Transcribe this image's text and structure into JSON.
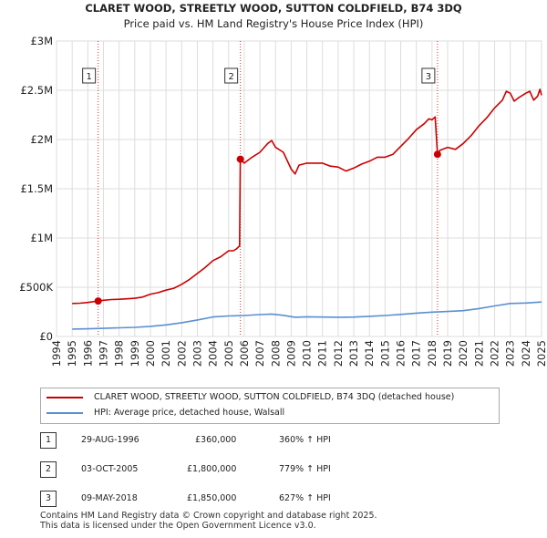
{
  "chart_data": {
    "type": "line",
    "title": "CLARET WOOD, STREETLY WOOD, SUTTON COLDFIELD, B74 3DQ",
    "subtitle": "Price paid vs. HM Land Registry's House Price Index (HPI)",
    "x_ticks": [
      "1994",
      "1995",
      "1996",
      "1997",
      "1998",
      "1999",
      "2000",
      "2001",
      "2002",
      "2003",
      "2004",
      "2005",
      "2006",
      "2007",
      "2008",
      "2009",
      "2010",
      "2011",
      "2012",
      "2013",
      "2014",
      "2015",
      "2016",
      "2017",
      "2018",
      "2019",
      "2020",
      "2021",
      "2022",
      "2023",
      "2024",
      "2025"
    ],
    "y_ticks": [
      {
        "value": 0,
        "label": "£0"
      },
      {
        "value": 500000,
        "label": "£500K"
      },
      {
        "value": 1000000,
        "label": "£1M"
      },
      {
        "value": 1500000,
        "label": "£1.5M"
      },
      {
        "value": 2000000,
        "label": "£2M"
      },
      {
        "value": 2500000,
        "label": "£2.5M"
      },
      {
        "value": 3000000,
        "label": "£3M"
      }
    ],
    "xlim": [
      1994,
      2025
    ],
    "ylim": [
      0,
      3000000
    ],
    "series": [
      {
        "name": "CLARET WOOD, STREETLY WOOD, SUTTON COLDFIELD, B74 3DQ (detached house)",
        "color": "#cc0000",
        "points": [
          [
            1995.0,
            335000
          ],
          [
            1995.5,
            338000
          ],
          [
            1996.0,
            345000
          ],
          [
            1996.66,
            360000
          ],
          [
            1997.0,
            368000
          ],
          [
            1997.5,
            375000
          ],
          [
            1998.0,
            378000
          ],
          [
            1998.5,
            382000
          ],
          [
            1999.0,
            388000
          ],
          [
            1999.5,
            400000
          ],
          [
            2000.0,
            430000
          ],
          [
            2000.5,
            445000
          ],
          [
            2001.0,
            470000
          ],
          [
            2001.5,
            490000
          ],
          [
            2002.0,
            530000
          ],
          [
            2002.5,
            580000
          ],
          [
            2003.0,
            640000
          ],
          [
            2003.5,
            700000
          ],
          [
            2004.0,
            770000
          ],
          [
            2004.5,
            810000
          ],
          [
            2005.0,
            870000
          ],
          [
            2005.3,
            870000
          ],
          [
            2005.5,
            890000
          ],
          [
            2005.7,
            920000
          ],
          [
            2005.75,
            1800000
          ],
          [
            2006.0,
            1760000
          ],
          [
            2006.5,
            1820000
          ],
          [
            2007.0,
            1870000
          ],
          [
            2007.5,
            1960000
          ],
          [
            2007.75,
            1990000
          ],
          [
            2008.0,
            1920000
          ],
          [
            2008.5,
            1870000
          ],
          [
            2009.0,
            1700000
          ],
          [
            2009.25,
            1650000
          ],
          [
            2009.5,
            1740000
          ],
          [
            2010.0,
            1760000
          ],
          [
            2010.5,
            1760000
          ],
          [
            2011.0,
            1760000
          ],
          [
            2011.5,
            1730000
          ],
          [
            2012.0,
            1720000
          ],
          [
            2012.5,
            1680000
          ],
          [
            2013.0,
            1710000
          ],
          [
            2013.5,
            1750000
          ],
          [
            2014.0,
            1780000
          ],
          [
            2014.5,
            1820000
          ],
          [
            2015.0,
            1820000
          ],
          [
            2015.5,
            1850000
          ],
          [
            2016.0,
            1930000
          ],
          [
            2016.5,
            2010000
          ],
          [
            2017.0,
            2100000
          ],
          [
            2017.5,
            2160000
          ],
          [
            2017.8,
            2210000
          ],
          [
            2018.0,
            2200000
          ],
          [
            2018.2,
            2230000
          ],
          [
            2018.35,
            1850000
          ],
          [
            2018.5,
            1890000
          ],
          [
            2019.0,
            1920000
          ],
          [
            2019.5,
            1900000
          ],
          [
            2020.0,
            1960000
          ],
          [
            2020.5,
            2040000
          ],
          [
            2021.0,
            2140000
          ],
          [
            2021.5,
            2220000
          ],
          [
            2022.0,
            2320000
          ],
          [
            2022.5,
            2400000
          ],
          [
            2022.75,
            2490000
          ],
          [
            2023.0,
            2470000
          ],
          [
            2023.25,
            2390000
          ],
          [
            2023.5,
            2420000
          ],
          [
            2024.0,
            2470000
          ],
          [
            2024.25,
            2490000
          ],
          [
            2024.5,
            2400000
          ],
          [
            2024.75,
            2440000
          ],
          [
            2024.9,
            2510000
          ],
          [
            2025.0,
            2450000
          ]
        ]
      },
      {
        "name": "HPI: Average price, detached house, Walsall",
        "color": "#5b8fd1",
        "points": [
          [
            1995.0,
            75000
          ],
          [
            1996.0,
            78000
          ],
          [
            1997.0,
            82000
          ],
          [
            1998.0,
            88000
          ],
          [
            1999.0,
            93000
          ],
          [
            2000.0,
            103000
          ],
          [
            2001.0,
            118000
          ],
          [
            2002.0,
            140000
          ],
          [
            2003.0,
            168000
          ],
          [
            2004.0,
            198000
          ],
          [
            2005.0,
            208000
          ],
          [
            2006.0,
            213000
          ],
          [
            2007.0,
            222000
          ],
          [
            2007.75,
            228000
          ],
          [
            2008.5,
            215000
          ],
          [
            2009.25,
            195000
          ],
          [
            2010.0,
            200000
          ],
          [
            2011.0,
            197000
          ],
          [
            2012.0,
            195000
          ],
          [
            2013.0,
            197000
          ],
          [
            2014.0,
            205000
          ],
          [
            2015.0,
            213000
          ],
          [
            2016.0,
            224000
          ],
          [
            2017.0,
            237000
          ],
          [
            2018.0,
            247000
          ],
          [
            2019.0,
            254000
          ],
          [
            2020.0,
            262000
          ],
          [
            2021.0,
            283000
          ],
          [
            2022.0,
            310000
          ],
          [
            2023.0,
            335000
          ],
          [
            2024.0,
            340000
          ],
          [
            2025.0,
            350000
          ]
        ]
      }
    ],
    "sales": [
      {
        "id": "1",
        "date": "29-AUG-1996",
        "x": 1996.66,
        "price": 360000,
        "price_label": "£360,000",
        "hpi": "360% ↑ HPI"
      },
      {
        "id": "2",
        "date": "03-OCT-2005",
        "x": 2005.75,
        "price": 1800000,
        "price_label": "£1,800,000",
        "hpi": "779% ↑ HPI"
      },
      {
        "id": "3",
        "date": "09-MAY-2018",
        "x": 2018.35,
        "price": 1850000,
        "price_label": "£1,850,000",
        "hpi": "627% ↑ HPI"
      }
    ]
  },
  "footer": {
    "line1": "Contains HM Land Registry data © Crown copyright and database right 2025.",
    "line2": "This data is licensed under the Open Government Licence v3.0."
  }
}
